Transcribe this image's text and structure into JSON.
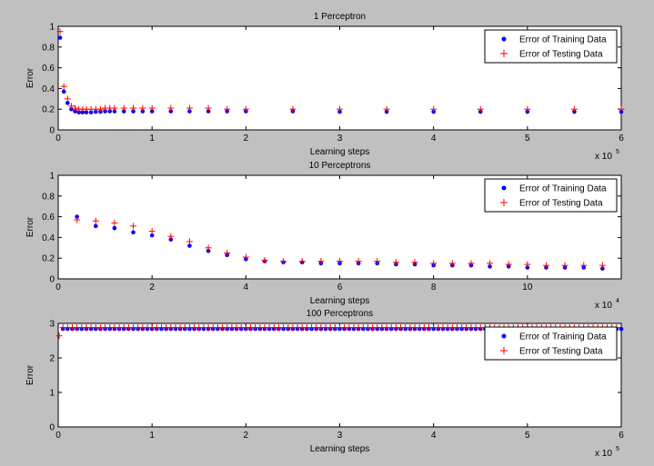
{
  "chart_data": [
    {
      "type": "scatter",
      "title": "1 Perceptron",
      "xlabel": "Learning steps",
      "ylabel": "Error",
      "x_exponent": "x 10",
      "x_exponent_power": "5",
      "xlim": [
        0,
        6
      ],
      "ylim": [
        0,
        1
      ],
      "xticks": [
        "0",
        "1",
        "2",
        "3",
        "4",
        "5",
        "6"
      ],
      "yticks": [
        "0",
        "0.2",
        "0.4",
        "0.6",
        "0.8",
        "1"
      ],
      "grid": false,
      "legend_position": "top-right",
      "series": [
        {
          "name": "Error of Training Data",
          "marker": "dot",
          "color": "#0000ff",
          "x": [
            0.02,
            0.06,
            0.1,
            0.14,
            0.18,
            0.22,
            0.26,
            0.3,
            0.35,
            0.4,
            0.45,
            0.5,
            0.55,
            0.6,
            0.7,
            0.8,
            0.9,
            1.0,
            1.2,
            1.4,
            1.6,
            1.8,
            2.0,
            2.5,
            3.0,
            3.5,
            4.0,
            4.5,
            5.0,
            5.5,
            6.0
          ],
          "y": [
            0.89,
            0.37,
            0.26,
            0.2,
            0.18,
            0.17,
            0.17,
            0.17,
            0.17,
            0.175,
            0.175,
            0.18,
            0.18,
            0.18,
            0.18,
            0.18,
            0.18,
            0.18,
            0.18,
            0.18,
            0.18,
            0.18,
            0.18,
            0.18,
            0.175,
            0.175,
            0.175,
            0.175,
            0.175,
            0.175,
            0.175
          ]
        },
        {
          "name": "Error of Testing Data",
          "marker": "plus",
          "color": "#ff0000",
          "x": [
            0.02,
            0.06,
            0.1,
            0.14,
            0.18,
            0.22,
            0.26,
            0.3,
            0.35,
            0.4,
            0.45,
            0.5,
            0.55,
            0.6,
            0.7,
            0.8,
            0.9,
            1.0,
            1.2,
            1.4,
            1.6,
            1.8,
            2.0,
            2.5,
            3.0,
            3.5,
            4.0,
            4.5,
            5.0,
            5.5,
            6.0
          ],
          "y": [
            0.95,
            0.42,
            0.3,
            0.23,
            0.21,
            0.2,
            0.2,
            0.2,
            0.2,
            0.2,
            0.2,
            0.21,
            0.21,
            0.21,
            0.21,
            0.21,
            0.21,
            0.21,
            0.21,
            0.21,
            0.21,
            0.2,
            0.2,
            0.2,
            0.2,
            0.2,
            0.2,
            0.2,
            0.2,
            0.2,
            0.2
          ]
        }
      ]
    },
    {
      "type": "scatter",
      "title": "10 Perceptrons",
      "xlabel": "Learning steps",
      "ylabel": "Error",
      "x_exponent": "x 10",
      "x_exponent_power": "4",
      "xlim": [
        0,
        12
      ],
      "ylim": [
        0,
        1
      ],
      "xticks": [
        "0",
        "2",
        "4",
        "6",
        "8",
        "10"
      ],
      "yticks": [
        "0",
        "0.2",
        "0.4",
        "0.6",
        "0.8",
        "1"
      ],
      "grid": false,
      "legend_position": "top-right",
      "series": [
        {
          "name": "Error of Training Data",
          "marker": "dot",
          "color": "#0000ff",
          "x": [
            0.4,
            0.8,
            1.2,
            1.6,
            2.0,
            2.4,
            2.8,
            3.2,
            3.6,
            4.0,
            4.4,
            4.8,
            5.2,
            5.6,
            6.0,
            6.4,
            6.8,
            7.2,
            7.6,
            8.0,
            8.4,
            8.8,
            9.2,
            9.6,
            10.0,
            10.4,
            10.8,
            11.2,
            11.6
          ],
          "y": [
            0.6,
            0.51,
            0.49,
            0.45,
            0.42,
            0.38,
            0.32,
            0.27,
            0.23,
            0.19,
            0.17,
            0.16,
            0.16,
            0.15,
            0.15,
            0.15,
            0.15,
            0.14,
            0.14,
            0.13,
            0.13,
            0.13,
            0.12,
            0.12,
            0.11,
            0.11,
            0.11,
            0.11,
            0.1
          ]
        },
        {
          "name": "Error of Testing Data",
          "marker": "plus",
          "color": "#ff0000",
          "x": [
            0.4,
            0.8,
            1.2,
            1.6,
            2.0,
            2.4,
            2.8,
            3.2,
            3.6,
            4.0,
            4.4,
            4.8,
            5.2,
            5.6,
            6.0,
            6.4,
            6.8,
            7.2,
            7.6,
            8.0,
            8.4,
            8.8,
            9.2,
            9.6,
            10.0,
            10.4,
            10.8,
            11.2,
            11.6
          ],
          "y": [
            0.57,
            0.56,
            0.54,
            0.51,
            0.46,
            0.41,
            0.36,
            0.3,
            0.25,
            0.21,
            0.18,
            0.17,
            0.17,
            0.17,
            0.17,
            0.17,
            0.17,
            0.16,
            0.16,
            0.15,
            0.15,
            0.15,
            0.15,
            0.14,
            0.14,
            0.13,
            0.13,
            0.13,
            0.13
          ]
        }
      ]
    },
    {
      "type": "scatter",
      "title": "100 Perceptrons",
      "xlabel": "Learning steps",
      "ylabel": "Error",
      "x_exponent": "x 10",
      "x_exponent_power": "5",
      "xlim": [
        0,
        6
      ],
      "ylim": [
        0,
        3
      ],
      "xticks": [
        "0",
        "1",
        "2",
        "3",
        "4",
        "5",
        "6"
      ],
      "yticks": [
        "0",
        "1",
        "2",
        "3"
      ],
      "grid": false,
      "legend_position": "top-right",
      "series": [
        {
          "name": "Error of Training Data",
          "marker": "dot",
          "color": "#0000ff",
          "x": [
            0.05,
            0.1,
            0.15,
            0.2,
            0.25,
            0.3,
            0.35,
            0.4,
            0.45,
            0.5,
            0.55,
            0.6,
            0.65,
            0.7,
            0.75,
            0.8,
            0.85,
            0.9,
            0.95,
            1.0,
            1.05,
            1.1,
            1.15,
            1.2,
            1.25,
            1.3,
            1.35,
            1.4,
            1.45,
            1.5,
            1.55,
            1.6,
            1.65,
            1.7,
            1.75,
            1.8,
            1.85,
            1.9,
            1.95,
            2.0,
            2.05,
            2.1,
            2.15,
            2.2,
            2.25,
            2.3,
            2.35,
            2.4,
            2.45,
            2.5,
            2.55,
            2.6,
            2.65,
            2.7,
            2.75,
            2.8,
            2.85,
            2.9,
            2.95,
            3.0,
            3.05,
            3.1,
            3.15,
            3.2,
            3.25,
            3.3,
            3.35,
            3.4,
            3.45,
            3.5,
            3.55,
            3.6,
            3.65,
            3.7,
            3.75,
            3.8,
            3.85,
            3.9,
            3.95,
            4.0,
            4.05,
            4.1,
            4.15,
            4.2,
            4.25,
            4.3,
            4.35,
            4.4,
            4.45,
            4.5,
            4.55,
            4.6,
            4.65,
            4.7,
            4.75,
            4.8,
            4.85,
            4.9,
            4.95,
            5.0,
            5.05,
            5.1,
            5.15,
            5.2,
            5.25,
            5.3,
            5.35,
            5.4,
            5.45,
            5.5,
            5.55,
            5.6,
            5.65,
            5.7,
            5.75,
            5.8,
            5.85,
            5.9,
            5.95,
            6.0
          ],
          "y": [
            2.84,
            2.84,
            2.84,
            2.84,
            2.84,
            2.84,
            2.84,
            2.84,
            2.84,
            2.84,
            2.84,
            2.84,
            2.84,
            2.84,
            2.84,
            2.84,
            2.84,
            2.84,
            2.84,
            2.84,
            2.84,
            2.84,
            2.84,
            2.84,
            2.84,
            2.84,
            2.84,
            2.84,
            2.84,
            2.84,
            2.84,
            2.84,
            2.84,
            2.84,
            2.84,
            2.84,
            2.84,
            2.84,
            2.84,
            2.84,
            2.84,
            2.84,
            2.84,
            2.84,
            2.84,
            2.84,
            2.84,
            2.84,
            2.84,
            2.84,
            2.84,
            2.84,
            2.84,
            2.84,
            2.84,
            2.84,
            2.84,
            2.84,
            2.84,
            2.84,
            2.84,
            2.84,
            2.84,
            2.84,
            2.84,
            2.84,
            2.84,
            2.84,
            2.84,
            2.84,
            2.84,
            2.84,
            2.84,
            2.84,
            2.84,
            2.84,
            2.84,
            2.84,
            2.84,
            2.84,
            2.84,
            2.84,
            2.84,
            2.84,
            2.84,
            2.84,
            2.84,
            2.84,
            2.84,
            2.84,
            2.84,
            2.84,
            2.84,
            2.84,
            2.84,
            2.84,
            2.84,
            2.84,
            2.84,
            2.84,
            2.84,
            2.84,
            2.84,
            2.84,
            2.84,
            2.84,
            2.84,
            2.84,
            2.84,
            2.84,
            2.84,
            2.84,
            2.84,
            2.84,
            2.84,
            2.84,
            2.84,
            2.84,
            2.84,
            2.84
          ]
        },
        {
          "name": "Error of Testing Data",
          "marker": "plus",
          "color": "#ff0000",
          "x": [
            0.01,
            0.05,
            0.1,
            0.15,
            0.2,
            0.25,
            0.3,
            0.35,
            0.4,
            0.45,
            0.5,
            0.55,
            0.6,
            0.65,
            0.7,
            0.75,
            0.8,
            0.85,
            0.9,
            0.95,
            1.0,
            1.05,
            1.1,
            1.15,
            1.2,
            1.25,
            1.3,
            1.35,
            1.4,
            1.45,
            1.5,
            1.55,
            1.6,
            1.65,
            1.7,
            1.75,
            1.8,
            1.85,
            1.9,
            1.95,
            2.0,
            2.05,
            2.1,
            2.15,
            2.2,
            2.25,
            2.3,
            2.35,
            2.4,
            2.45,
            2.5,
            2.55,
            2.6,
            2.65,
            2.7,
            2.75,
            2.8,
            2.85,
            2.9,
            2.95,
            3.0,
            3.05,
            3.1,
            3.15,
            3.2,
            3.25,
            3.3,
            3.35,
            3.4,
            3.45,
            3.5,
            3.55,
            3.6,
            3.65,
            3.7,
            3.75,
            3.8,
            3.85,
            3.9,
            3.95,
            4.0,
            4.05,
            4.1,
            4.15,
            4.2,
            4.25,
            4.3,
            4.35,
            4.4,
            4.45,
            4.5,
            4.55,
            4.6,
            4.65,
            4.7,
            4.75,
            4.8,
            4.85,
            4.9,
            4.95,
            5.0,
            5.05,
            5.1,
            5.15,
            5.2,
            5.25,
            5.3,
            5.35,
            5.4,
            5.45,
            5.5,
            5.55,
            5.6,
            5.65,
            5.7,
            5.75,
            5.8,
            5.85,
            5.9,
            5.95
          ],
          "y": [
            2.64,
            2.88,
            2.88,
            2.88,
            2.88,
            2.88,
            2.88,
            2.88,
            2.88,
            2.88,
            2.88,
            2.88,
            2.88,
            2.88,
            2.88,
            2.88,
            2.88,
            2.88,
            2.88,
            2.88,
            2.88,
            2.88,
            2.88,
            2.88,
            2.88,
            2.88,
            2.88,
            2.88,
            2.88,
            2.88,
            2.88,
            2.88,
            2.88,
            2.88,
            2.88,
            2.88,
            2.88,
            2.88,
            2.88,
            2.88,
            2.88,
            2.88,
            2.88,
            2.88,
            2.88,
            2.88,
            2.88,
            2.88,
            2.88,
            2.88,
            2.88,
            2.88,
            2.88,
            2.88,
            2.88,
            2.88,
            2.88,
            2.88,
            2.88,
            2.88,
            2.88,
            2.88,
            2.88,
            2.88,
            2.88,
            2.88,
            2.88,
            2.88,
            2.88,
            2.88,
            2.88,
            2.88,
            2.88,
            2.88,
            2.88,
            2.88,
            2.88,
            2.88,
            2.88,
            2.88,
            2.88,
            2.88,
            2.88,
            2.88,
            2.88,
            2.88,
            2.88,
            2.88,
            2.88,
            2.88,
            2.88,
            2.88,
            2.88,
            2.88,
            2.88,
            2.88,
            2.88,
            2.88,
            2.88,
            2.88,
            2.88,
            2.88,
            2.88,
            2.88,
            2.88,
            2.88,
            2.88,
            2.88,
            2.88,
            2.88,
            2.88,
            2.88,
            2.88,
            2.88,
            2.88,
            2.88,
            2.88,
            2.88,
            2.88,
            2.88
          ]
        }
      ]
    }
  ]
}
